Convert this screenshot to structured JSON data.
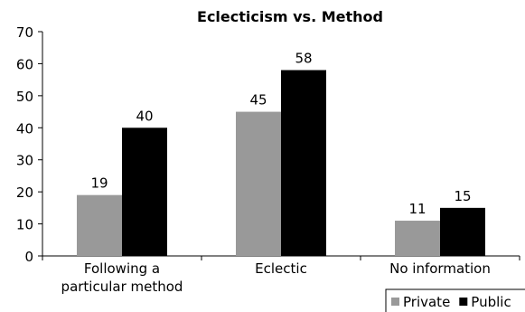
{
  "chart_data": {
    "type": "bar",
    "title": "Eclecticism vs. Method",
    "xlabel": "",
    "ylabel": "",
    "categories": [
      [
        "Following a",
        "particular method"
      ],
      [
        "Eclectic"
      ],
      [
        "No information"
      ]
    ],
    "series": [
      {
        "name": "Private",
        "values": [
          19,
          45,
          11
        ],
        "color": "#999999"
      },
      {
        "name": "Public",
        "values": [
          40,
          58,
          15
        ],
        "color": "#000000"
      }
    ],
    "ylim": [
      0,
      70
    ],
    "yticks": [
      0,
      10,
      20,
      30,
      40,
      50,
      60,
      70
    ],
    "grid": false,
    "legend": "bottom-right",
    "data_labels": true
  }
}
